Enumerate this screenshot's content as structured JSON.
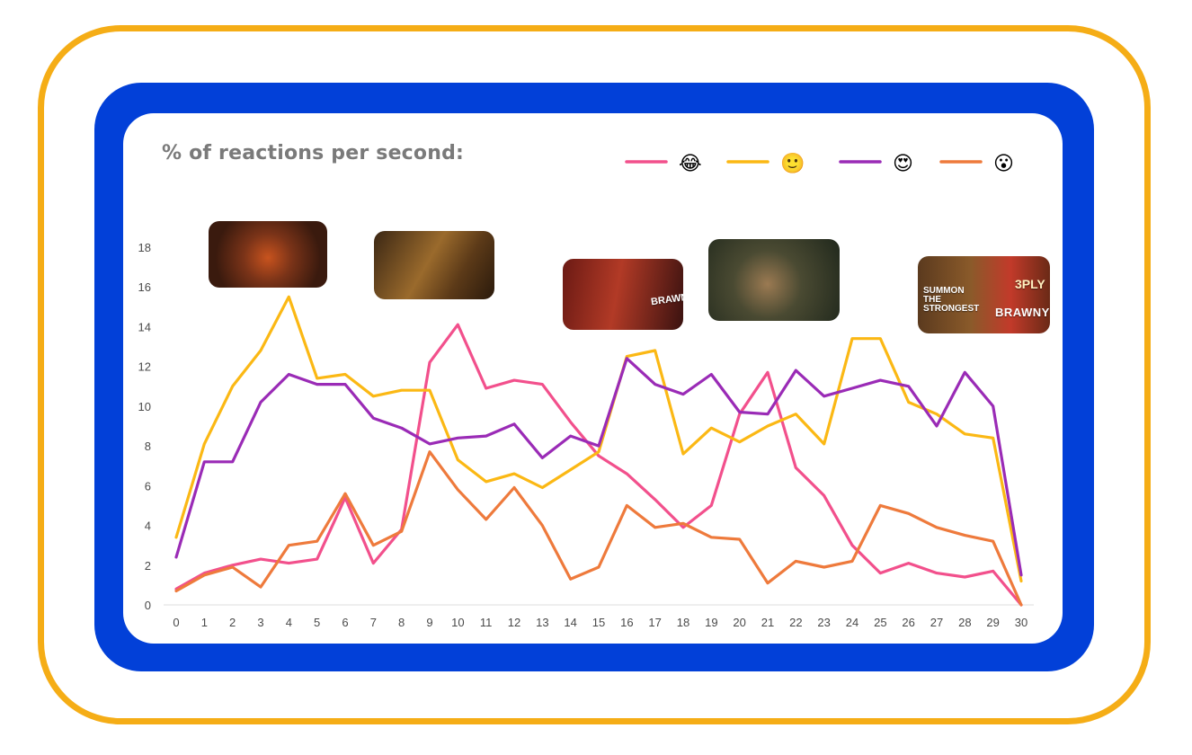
{
  "colors": {
    "outer_frame": "#f5ad16",
    "blue_frame": "#0240d8",
    "card": "#ffffff",
    "title": "#7a7a7a"
  },
  "chart_data": {
    "type": "line",
    "title": "% of reactions per second:",
    "x": [
      0,
      1,
      2,
      3,
      4,
      5,
      6,
      7,
      8,
      9,
      10,
      11,
      12,
      13,
      14,
      15,
      16,
      17,
      18,
      19,
      20,
      21,
      22,
      23,
      24,
      25,
      26,
      27,
      28,
      29,
      30
    ],
    "ylim": [
      0,
      18
    ],
    "yticks": [
      0,
      2,
      4,
      6,
      8,
      10,
      12,
      14,
      16,
      18
    ],
    "grid": "baseline only",
    "legend": "top-right",
    "series": [
      {
        "name": "😂",
        "color": "#f2508c",
        "values": [
          0.8,
          1.6,
          2.0,
          2.3,
          2.1,
          2.3,
          5.4,
          2.1,
          3.8,
          12.2,
          14.1,
          10.9,
          11.3,
          11.1,
          9.2,
          7.5,
          6.6,
          5.3,
          3.9,
          5.0,
          9.6,
          11.7,
          6.9,
          5.5,
          3.0,
          1.6,
          2.1,
          1.6,
          1.4,
          1.7,
          0.0
        ]
      },
      {
        "name": "🙂",
        "color": "#fbb814",
        "values": [
          3.4,
          8.1,
          11.0,
          12.8,
          15.5,
          11.4,
          11.6,
          10.5,
          10.8,
          10.8,
          7.3,
          6.2,
          6.6,
          5.9,
          6.8,
          7.7,
          12.5,
          12.8,
          7.6,
          8.9,
          8.2,
          9.0,
          9.6,
          8.1,
          13.4,
          13.4,
          10.2,
          9.6,
          8.6,
          8.4,
          1.2
        ]
      },
      {
        "name": "😍",
        "color": "#9a2bb6",
        "values": [
          2.4,
          7.2,
          7.2,
          10.2,
          11.6,
          11.1,
          11.1,
          9.4,
          8.9,
          8.1,
          8.4,
          8.5,
          9.1,
          7.4,
          8.5,
          8.0,
          12.4,
          11.1,
          10.6,
          11.6,
          9.7,
          9.6,
          11.8,
          10.5,
          10.9,
          11.3,
          11.0,
          9.0,
          11.7,
          10.0,
          1.5
        ]
      },
      {
        "name": "😮",
        "color": "#ee7a3c",
        "values": [
          0.7,
          1.5,
          1.9,
          0.9,
          3.0,
          3.2,
          5.6,
          3.0,
          3.7,
          7.7,
          5.8,
          4.3,
          5.9,
          4.0,
          1.3,
          1.9,
          5.0,
          3.9,
          4.1,
          3.4,
          3.3,
          1.1,
          2.2,
          1.9,
          2.2,
          5.0,
          4.6,
          3.9,
          3.5,
          3.2,
          0.0
        ]
      }
    ]
  },
  "thumbnails": [
    {
      "name": "party-scene"
    },
    {
      "name": "dust-scene"
    },
    {
      "name": "brawny-man-scene",
      "text": "BRAWNY"
    },
    {
      "name": "man-phone-scene"
    },
    {
      "name": "product-scene",
      "text_1": "SUMMON THE STRONGEST",
      "text_2": "BRAWNY",
      "text_3": "3PLY"
    }
  ]
}
